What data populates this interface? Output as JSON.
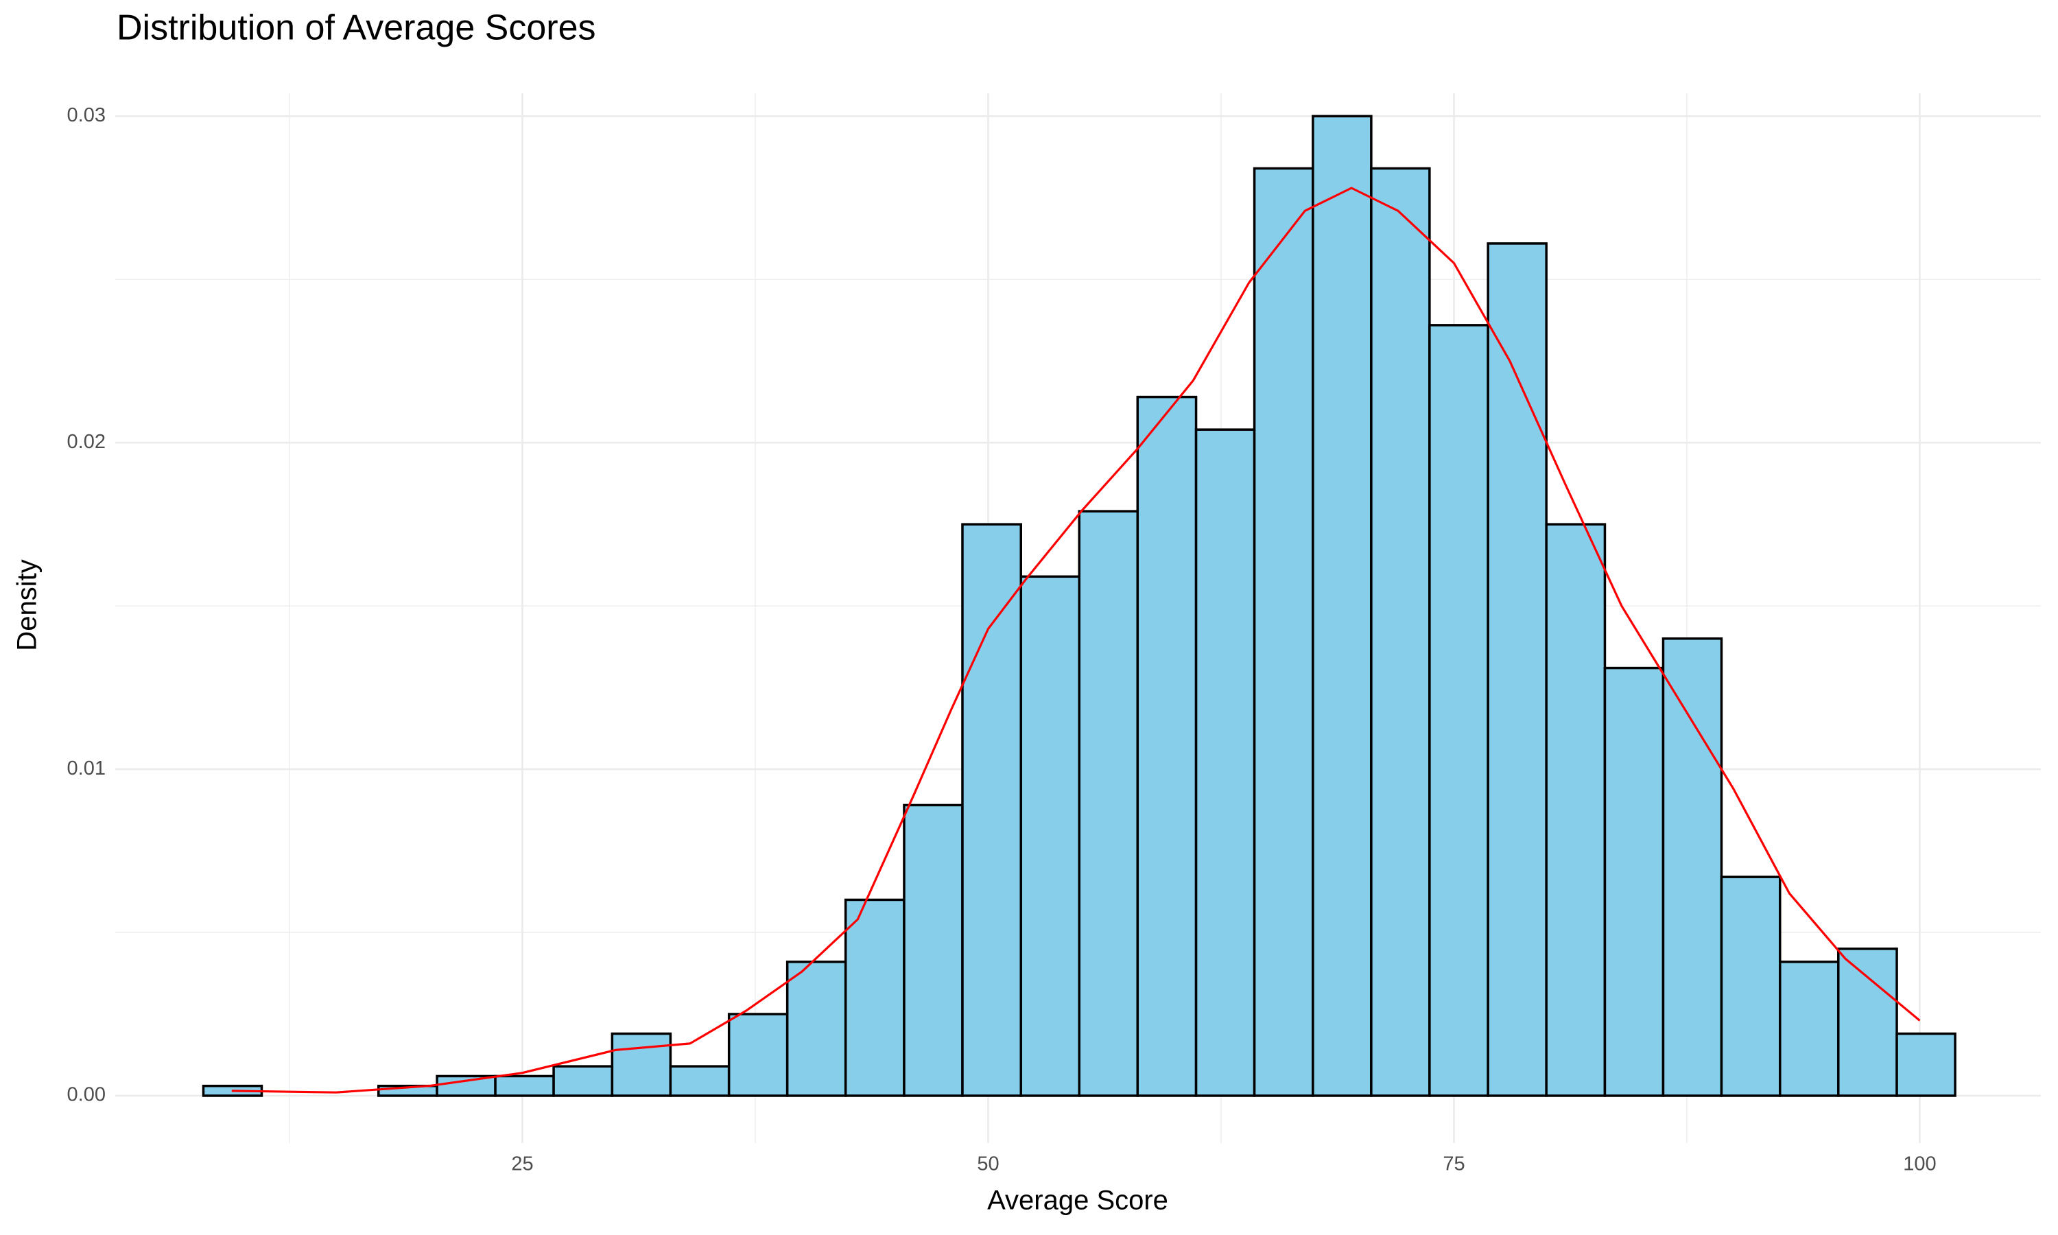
{
  "chart_data": {
    "type": "histogram",
    "title": "Distribution of Average Scores",
    "xlabel": "Average Score",
    "ylabel": "Density",
    "bins": [
      7.88,
      11.01,
      14.15,
      17.28,
      20.42,
      23.55,
      26.68,
      29.82,
      32.95,
      36.09,
      39.22,
      42.35,
      45.49,
      48.62,
      51.76,
      54.89,
      58.02,
      61.16,
      64.29,
      67.43,
      70.56,
      73.69,
      76.83,
      79.96,
      83.1,
      86.23,
      89.36,
      92.5,
      95.63,
      98.77,
      101.9
    ],
    "values": [
      0.0003,
      0,
      0,
      0.0003,
      0.0006,
      0.0006,
      0.0009,
      0.0019,
      0.0009,
      0.0025,
      0.0041,
      0.006,
      0.0089,
      0.0175,
      0.0159,
      0.0179,
      0.0214,
      0.0204,
      0.0284,
      0.03,
      0.0284,
      0.0236,
      0.0261,
      0.0175,
      0.0131,
      0.014,
      0.0067,
      0.0041,
      0.0045,
      0.0019
    ],
    "color": "#87ceeb",
    "edgecolor": "#000000",
    "curve": {
      "color": "#ff0000",
      "x": [
        9.4,
        15,
        20,
        25,
        30,
        34,
        37,
        40,
        43,
        46,
        48,
        50,
        52,
        55,
        58,
        61,
        64,
        67,
        69.5,
        72,
        75,
        78,
        81,
        84,
        87,
        90,
        93,
        96,
        100
      ],
      "values": [
        0.00015,
        0.0001,
        0.0003,
        0.0007,
        0.0014,
        0.0016,
        0.0026,
        0.0038,
        0.0054,
        0.0092,
        0.0118,
        0.0143,
        0.0158,
        0.0179,
        0.0198,
        0.0219,
        0.0249,
        0.0271,
        0.0278,
        0.0271,
        0.0255,
        0.0225,
        0.0187,
        0.015,
        0.0122,
        0.0094,
        0.0062,
        0.0042,
        0.0023
      ]
    },
    "xlim": [
      3.15,
      106.5
    ],
    "xticks": [
      25,
      50,
      75,
      100
    ],
    "ylim": [
      -0.00145,
      0.0307
    ],
    "yticks": [
      {
        "value": 0,
        "label": "0.00"
      },
      0.01,
      0.02,
      0.03
    ],
    "grid": true
  }
}
